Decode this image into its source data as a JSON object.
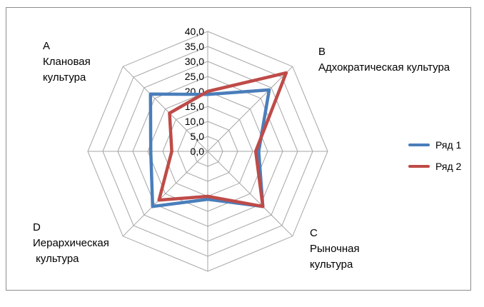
{
  "chart_data": {
    "type": "radar",
    "categories": [
      {
        "letter": "A",
        "name_lines": [
          "Клановая",
          "культура"
        ]
      },
      {
        "letter": "B",
        "name_lines": [
          "Адхократическая культура"
        ]
      },
      {
        "letter": "",
        "name_lines": []
      },
      {
        "letter": "C",
        "name_lines": [
          "Рыночная",
          "культура"
        ]
      },
      {
        "letter": "",
        "name_lines": []
      },
      {
        "letter": "D",
        "name_lines": [
          "Иерархическая",
          " культура"
        ]
      },
      {
        "letter": "",
        "name_lines": []
      },
      {
        "letter": "",
        "name_lines": []
      }
    ],
    "axis_ticks": [
      "0,0",
      "5,0",
      "10,0",
      "15,0",
      "20,0",
      "25,0",
      "30,0",
      "35,0",
      "40,0"
    ],
    "rmin": 0,
    "rmax": 40,
    "grid": true,
    "legend_position": "right",
    "series": [
      {
        "name": "Ряд 1",
        "color": "#4a7ebb",
        "values": [
          19,
          29,
          17,
          26,
          16,
          26,
          19,
          27
        ]
      },
      {
        "name": "Ряд 2",
        "color": "#be4b48",
        "values": [
          20,
          37,
          16,
          26,
          15,
          23,
          12,
          18
        ]
      }
    ]
  }
}
